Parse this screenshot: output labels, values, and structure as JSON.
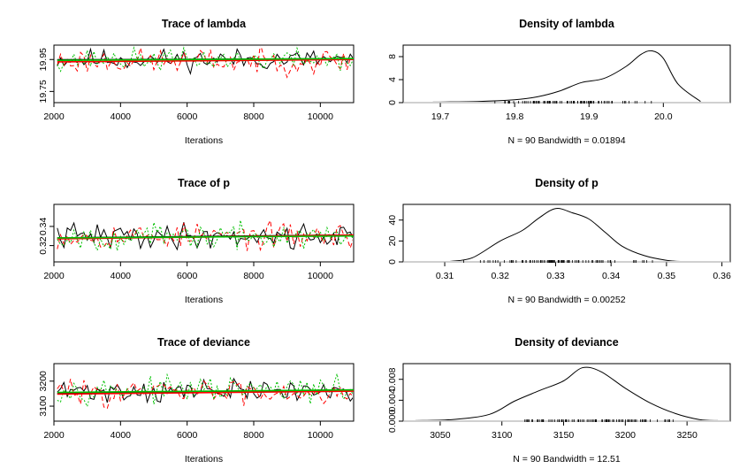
{
  "chart_data": [
    {
      "type": "line",
      "title": "Trace of lambda",
      "xlabel": "Iterations",
      "ylabel": "",
      "xlim": [
        2000,
        11000
      ],
      "ylim": [
        19.68,
        20.04
      ],
      "xticks": [
        2000,
        4000,
        6000,
        8000,
        10000
      ],
      "yticks": [
        19.75,
        19.95
      ],
      "x": {
        "start": 2100,
        "step": 100,
        "n": 90
      },
      "series": [
        {
          "color": "#000000",
          "dash": "solid",
          "center": 19.95,
          "spread": 0.05,
          "seed": 11
        },
        {
          "color": "#ff0000",
          "dash": "dashed",
          "center": 19.94,
          "spread": 0.06,
          "seed": 23
        },
        {
          "color": "#00c000",
          "dash": "dotted",
          "center": 19.95,
          "spread": 0.05,
          "seed": 37
        }
      ],
      "smooth": [
        {
          "color": "#000000",
          "y0": 19.948,
          "y1": 19.955
        },
        {
          "color": "#ff0000",
          "y0": 19.935,
          "y1": 19.95
        },
        {
          "color": "#00c000",
          "y0": 19.945,
          "y1": 19.956
        }
      ]
    },
    {
      "type": "area",
      "title": "Density of lambda",
      "xlabel": "N = 90   Bandwidth = 0.01894",
      "ylabel": "",
      "xlim": [
        19.65,
        20.09
      ],
      "ylim": [
        0,
        10
      ],
      "xticks": [
        19.7,
        19.8,
        19.9,
        20.0
      ],
      "yticks": [
        0,
        4,
        8
      ],
      "x": [
        19.69,
        19.75,
        19.8,
        19.83,
        19.86,
        19.89,
        19.92,
        19.95,
        19.97,
        19.985,
        20.0,
        20.02,
        20.05
      ],
      "y": [
        0.1,
        0.2,
        0.5,
        1.0,
        2.0,
        3.5,
        4.2,
        6.3,
        8.4,
        9.0,
        7.7,
        3.2,
        0.2
      ],
      "rug": {
        "min": 19.76,
        "max": 20.0,
        "n": 90,
        "seed": 5
      }
    },
    {
      "type": "line",
      "title": "Trace of p",
      "xlabel": "Iterations",
      "ylabel": "",
      "xlim": [
        2000,
        11000
      ],
      "ylim": [
        0.303,
        0.363
      ],
      "xticks": [
        2000,
        4000,
        6000,
        8000,
        10000
      ],
      "yticks": [
        0.32,
        0.34
      ],
      "x": {
        "start": 2100,
        "step": 100,
        "n": 90
      },
      "series": [
        {
          "color": "#000000",
          "dash": "solid",
          "center": 0.33,
          "spread": 0.01,
          "seed": 41
        },
        {
          "color": "#ff0000",
          "dash": "dashed",
          "center": 0.33,
          "spread": 0.01,
          "seed": 53
        },
        {
          "color": "#00c000",
          "dash": "dotted",
          "center": 0.329,
          "spread": 0.01,
          "seed": 67
        }
      ],
      "smooth": [
        {
          "color": "#000000",
          "y0": 0.328,
          "y1": 0.331
        },
        {
          "color": "#ff0000",
          "y0": 0.327,
          "y1": 0.331
        },
        {
          "color": "#00c000",
          "y0": 0.328,
          "y1": 0.33
        }
      ]
    },
    {
      "type": "area",
      "title": "Density of p",
      "xlabel": "N = 90   Bandwidth = 0.00252",
      "ylabel": "",
      "xlim": [
        0.3025,
        0.3615
      ],
      "ylim": [
        0,
        55
      ],
      "xticks": [
        0.31,
        0.32,
        0.33,
        0.34,
        0.35,
        0.36
      ],
      "yticks": [
        0,
        20,
        40
      ],
      "x": [
        0.311,
        0.315,
        0.32,
        0.324,
        0.327,
        0.33,
        0.333,
        0.336,
        0.339,
        0.342,
        0.346,
        0.35,
        0.353
      ],
      "y": [
        0.5,
        4,
        20,
        30,
        42,
        51,
        47,
        41,
        28,
        15,
        6,
        1.5,
        0.3
      ],
      "rug": {
        "min": 0.313,
        "max": 0.35,
        "n": 90,
        "seed": 9
      }
    },
    {
      "type": "line",
      "title": "Trace of deviance",
      "xlabel": "Iterations",
      "ylabel": "",
      "xlim": [
        2000,
        11000
      ],
      "ylim": [
        3040,
        3270
      ],
      "xticks": [
        2000,
        4000,
        6000,
        8000,
        10000
      ],
      "yticks": [
        3100,
        3200
      ],
      "x": {
        "start": 2100,
        "step": 100,
        "n": 90
      },
      "series": [
        {
          "color": "#000000",
          "dash": "solid",
          "center": 3160,
          "spread": 35,
          "seed": 71
        },
        {
          "color": "#ff0000",
          "dash": "dashed",
          "center": 3158,
          "spread": 38,
          "seed": 83
        },
        {
          "color": "#00c000",
          "dash": "dotted",
          "center": 3165,
          "spread": 35,
          "seed": 97
        }
      ],
      "smooth": [
        {
          "color": "#000000",
          "y0": 3150,
          "y1": 3165
        },
        {
          "color": "#ff0000",
          "y0": 3148,
          "y1": 3160
        },
        {
          "color": "#00c000",
          "y0": 3155,
          "y1": 3165
        }
      ]
    },
    {
      "type": "area",
      "title": "Density of deviance",
      "xlabel": "N = 90   Bandwidth = 12.51",
      "ylabel": "",
      "xlim": [
        3020,
        3285
      ],
      "ylim": [
        0,
        0.011
      ],
      "xticks": [
        3050,
        3100,
        3150,
        3200,
        3250
      ],
      "ytickLabels": [
        "0.000",
        "0.004",
        "0.008"
      ],
      "yticks": [
        0,
        0.004,
        0.008
      ],
      "x": [
        3030,
        3060,
        3090,
        3110,
        3130,
        3150,
        3165,
        3180,
        3200,
        3220,
        3240,
        3260,
        3275
      ],
      "y": [
        0.0001,
        0.0003,
        0.0013,
        0.0038,
        0.0058,
        0.0077,
        0.0102,
        0.0095,
        0.0063,
        0.0035,
        0.0015,
        0.0003,
        0.0001
      ],
      "rug": {
        "min": 3100,
        "max": 3250,
        "n": 90,
        "seed": 13
      }
    }
  ]
}
